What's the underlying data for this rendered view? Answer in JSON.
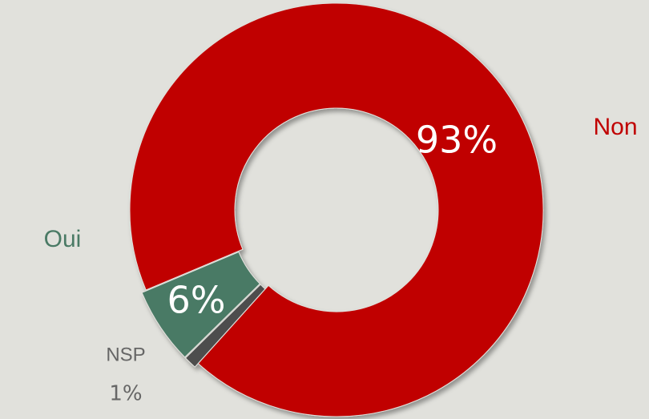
{
  "chart_data": {
    "type": "donut",
    "categories": [
      "Non",
      "Oui",
      "NSP"
    ],
    "values": [
      93,
      6,
      1
    ],
    "value_labels": [
      "93%",
      "6%",
      "1%"
    ],
    "colors": [
      "#c00000",
      "#4a7a65",
      "#4d4d4d"
    ]
  }
}
